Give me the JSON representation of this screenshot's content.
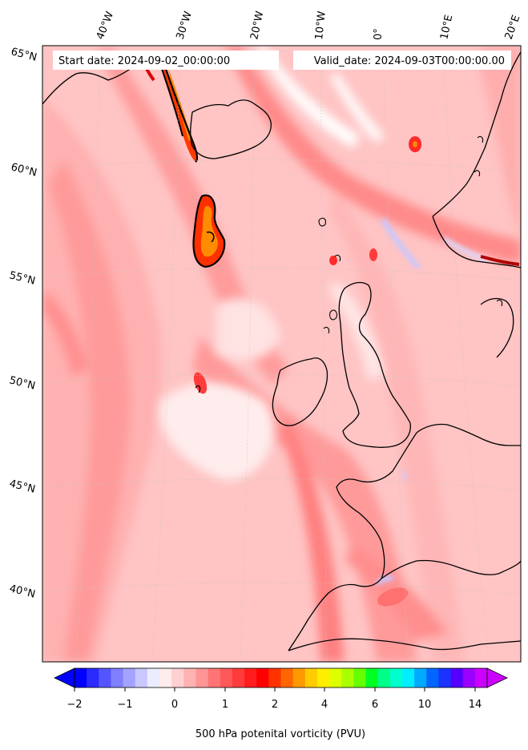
{
  "header": {
    "start_label": "Start date: 2024-09-02_00:00:00",
    "valid_label": "Valid_date: 2024-09-03T00:00:00.00"
  },
  "lon_labels": [
    "40°W",
    "30°W",
    "20°W",
    "10°W",
    "0°",
    "10°E",
    "20°E"
  ],
  "lat_labels": [
    "65°N",
    "60°N",
    "55°N",
    "50°N",
    "45°N",
    "40°N"
  ],
  "colorbar": {
    "label": "500 hPa potenital vorticity (PVU)",
    "tick_labels": [
      "−2",
      "−1",
      "0",
      "1",
      "2",
      "4",
      "6",
      "10",
      "14"
    ],
    "colors": [
      "#0000ff",
      "#2b2bff",
      "#5555ff",
      "#7f7fff",
      "#a3a3ff",
      "#c8c8ff",
      "#ececff",
      "#ffecec",
      "#ffd0d0",
      "#ffb2b2",
      "#ff9595",
      "#ff7575",
      "#ff5858",
      "#ff3b3b",
      "#ff1d1d",
      "#ff0000",
      "#ff3300",
      "#ff6600",
      "#ff9900",
      "#ffcc00",
      "#ffee00",
      "#ddff00",
      "#aaff00",
      "#66ff00",
      "#00ff22",
      "#00ff88",
      "#00ffcc",
      "#00eeff",
      "#00aaff",
      "#0066ff",
      "#1a33ff",
      "#5500ff",
      "#9900ff",
      "#cc00ff"
    ]
  },
  "colors": {
    "background_pv": "#ffc4c4",
    "coast": "#000000"
  }
}
